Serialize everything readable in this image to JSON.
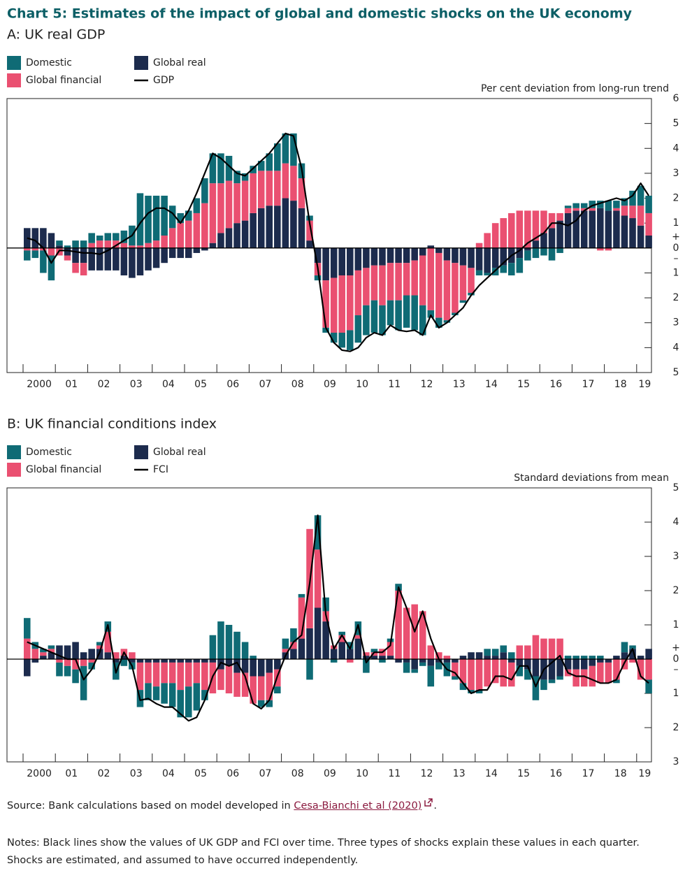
{
  "header": {
    "title": "Chart 5: Estimates of the impact of global and domestic shocks on the UK economy"
  },
  "chart_data": [
    {
      "type": "bar",
      "stacked": true,
      "subtitle": "A: UK real GDP",
      "y_label": "Per cent deviation from long-run trend",
      "years": [
        "2000",
        "01",
        "02",
        "03",
        "04",
        "05",
        "06",
        "07",
        "08",
        "09",
        "10",
        "11",
        "12",
        "13",
        "14",
        "15",
        "16",
        "17",
        "18",
        "19"
      ],
      "series": [
        {
          "name": "Domestic",
          "color": "#0f6b75",
          "values": [
            -0.4,
            -0.3,
            -0.9,
            -1.0,
            0.2,
            0.1,
            0.3,
            0.3,
            0.4,
            0.2,
            0.3,
            0.3,
            0.5,
            0.8,
            2.1,
            1.9,
            1.8,
            1.6,
            0.9,
            0.4,
            0.4,
            0.6,
            1.0,
            1.2,
            1.2,
            1.0,
            0.5,
            0.3,
            0.3,
            0.4,
            0.7,
            1.1,
            1.2,
            1.3,
            0.6,
            0.2,
            -0.2,
            -0.2,
            -0.4,
            -0.6,
            -0.8,
            -1.1,
            -1.2,
            -1.3,
            -1.2,
            -1.0,
            -1.2,
            -1.3,
            -1.4,
            -1.2,
            -0.3,
            -0.4,
            -0.1,
            -0.1,
            -0.1,
            -0.1,
            -0.2,
            -0.1,
            -0.3,
            -0.3,
            -0.5,
            -0.6,
            -0.4,
            -0.4,
            -0.3,
            -0.5,
            -0.2,
            0.1,
            0.2,
            0.2,
            0.3,
            0.3,
            0.4,
            0.3,
            0.3,
            0.6,
            0.8,
            0.7
          ]
        },
        {
          "name": "Global financial",
          "color": "#ea5071",
          "values": [
            -0.1,
            -0.1,
            -0.1,
            -0.3,
            -0.3,
            -0.2,
            -0.4,
            -0.5,
            0.2,
            0.3,
            0.3,
            0.3,
            0.2,
            0.1,
            0.1,
            0.2,
            0.3,
            0.5,
            0.8,
            1.0,
            1.1,
            1.4,
            1.8,
            2.4,
            2.0,
            1.9,
            1.6,
            1.6,
            1.6,
            1.5,
            1.4,
            1.4,
            1.4,
            1.4,
            1.2,
            0.8,
            -0.5,
            -1.9,
            -2.2,
            -2.3,
            -2.2,
            -1.8,
            -1.5,
            -1.4,
            -1.6,
            -1.5,
            -1.5,
            -1.3,
            -1.4,
            -2.0,
            -2.5,
            -2.6,
            -2.4,
            -2.0,
            -1.4,
            -1.0,
            0.2,
            0.6,
            1.0,
            1.2,
            1.4,
            1.5,
            1.5,
            1.2,
            0.9,
            0.6,
            0.3,
            0.2,
            0.1,
            0.1,
            0.1,
            -0.1,
            -0.1,
            0.1,
            0.4,
            0.5,
            0.8,
            0.9
          ]
        },
        {
          "name": "Global real",
          "color": "#1c2b4d",
          "values": [
            0.8,
            0.8,
            0.8,
            0.6,
            0.1,
            -0.3,
            -0.6,
            -0.6,
            -0.9,
            -0.9,
            -0.9,
            -0.9,
            -1.1,
            -1.2,
            -1.1,
            -0.9,
            -0.8,
            -0.6,
            -0.4,
            -0.4,
            -0.4,
            -0.2,
            -0.1,
            0.2,
            0.6,
            0.8,
            1.0,
            1.1,
            1.4,
            1.6,
            1.7,
            1.7,
            2.0,
            1.9,
            1.6,
            0.3,
            -0.6,
            -1.3,
            -1.2,
            -1.1,
            -1.1,
            -0.9,
            -0.8,
            -0.7,
            -0.7,
            -0.6,
            -0.6,
            -0.6,
            -0.5,
            -0.3,
            0.1,
            -0.2,
            -0.5,
            -0.6,
            -0.7,
            -0.8,
            -0.9,
            -1.0,
            -0.8,
            -0.7,
            -0.6,
            -0.4,
            -0.1,
            0.3,
            0.6,
            0.8,
            1.1,
            1.4,
            1.5,
            1.5,
            1.5,
            1.6,
            1.5,
            1.5,
            1.3,
            1.2,
            0.9,
            0.5
          ]
        }
      ],
      "line": {
        "name": "GDP",
        "color": "#000000",
        "values": [
          0.4,
          0.3,
          0.0,
          -0.6,
          -0.1,
          -0.1,
          -0.15,
          -0.2,
          -0.2,
          -0.25,
          -0.1,
          0.1,
          0.3,
          0.5,
          1.0,
          1.4,
          1.6,
          1.6,
          1.4,
          1.0,
          1.5,
          2.2,
          3.0,
          3.8,
          3.6,
          3.3,
          3.0,
          2.9,
          3.2,
          3.5,
          3.8,
          4.2,
          4.6,
          4.5,
          3.2,
          1.0,
          -0.8,
          -3.2,
          -3.8,
          -4.1,
          -4.15,
          -4.0,
          -3.6,
          -3.4,
          -3.5,
          -3.1,
          -3.3,
          -3.35,
          -3.3,
          -3.5,
          -2.7,
          -3.2,
          -3.0,
          -2.7,
          -2.4,
          -1.9,
          -1.5,
          -1.2,
          -0.9,
          -0.6,
          -0.3,
          -0.1,
          0.2,
          0.4,
          0.6,
          1.0,
          1.0,
          0.9,
          1.1,
          1.5,
          1.7,
          1.8,
          1.9,
          2.0,
          1.9,
          2.1,
          2.6,
          2.1
        ]
      },
      "ylim": [
        -5,
        6
      ],
      "yticks": [
        6,
        5,
        4,
        3,
        2,
        1,
        0,
        {
          "value": -1,
          "label": "1"
        },
        {
          "value": -2,
          "label": "2"
        },
        {
          "value": -3,
          "label": "3"
        },
        {
          "value": -4,
          "label": "4"
        },
        {
          "value": -5,
          "label": "5"
        }
      ],
      "zero_signs": [
        "+",
        "–"
      ]
    },
    {
      "type": "bar",
      "stacked": true,
      "subtitle": "B: UK financial conditions index",
      "y_label": "Standard deviations from mean",
      "years": [
        "2000",
        "01",
        "02",
        "03",
        "04",
        "05",
        "06",
        "07",
        "08",
        "09",
        "10",
        "11",
        "12",
        "13",
        "14",
        "15",
        "16",
        "17",
        "18",
        "19"
      ],
      "series": [
        {
          "name": "Domestic",
          "color": "#0f6b75",
          "values": [
            0.6,
            0.2,
            0.1,
            0.1,
            -0.4,
            -0.3,
            -0.4,
            -1.0,
            -0.2,
            0.1,
            0.3,
            -0.5,
            -0.2,
            -0.2,
            -0.5,
            -0.5,
            -0.4,
            -0.6,
            -0.7,
            -0.8,
            -0.9,
            -0.8,
            -0.3,
            0.7,
            1.1,
            1.0,
            0.8,
            0.5,
            0.1,
            -0.2,
            -0.2,
            -0.2,
            0.3,
            0.4,
            0.1,
            -0.6,
            1.0,
            0.4,
            -0.1,
            0.1,
            0.2,
            0.4,
            -0.4,
            0.1,
            -0.1,
            0.1,
            0.2,
            -0.3,
            -0.1,
            -0.1,
            -0.6,
            -0.2,
            -0.4,
            -0.1,
            -0.2,
            -0.1,
            -0.1,
            0.2,
            0.2,
            0.2,
            0.2,
            -0.3,
            -0.3,
            -0.7,
            -0.3,
            -0.1,
            -0.1,
            0.1,
            0.1,
            0.1,
            0.1,
            0.1,
            0.0,
            -0.1,
            0.3,
            0.1,
            0.0,
            -0.4
          ]
        },
        {
          "name": "Global financial",
          "color": "#ea5071",
          "values": [
            0.6,
            0.3,
            0.1,
            0.1,
            -0.1,
            -0.2,
            -0.3,
            -0.2,
            -0.1,
            0.1,
            0.6,
            0.2,
            0.2,
            0.2,
            -0.8,
            -0.6,
            -0.7,
            -0.6,
            -0.6,
            -0.8,
            -0.7,
            -0.6,
            -0.8,
            -0.9,
            -0.6,
            -0.8,
            -0.7,
            -0.7,
            -0.8,
            -0.7,
            -0.8,
            -0.5,
            0.1,
            0.2,
            1.2,
            2.9,
            1.7,
            0.3,
            0.1,
            0.2,
            -0.1,
            0.1,
            0.1,
            0.1,
            0.2,
            0.4,
            2.0,
            1.5,
            1.6,
            1.4,
            0.4,
            0.2,
            0.1,
            -0.4,
            -0.7,
            -0.9,
            -0.9,
            -0.8,
            -0.7,
            -0.8,
            -0.7,
            0.4,
            0.4,
            0.7,
            0.6,
            0.6,
            0.6,
            -0.2,
            -0.5,
            -0.5,
            -0.6,
            -0.6,
            -0.6,
            -0.6,
            -0.3,
            -0.1,
            -0.6,
            -0.6
          ]
        },
        {
          "name": "Global real",
          "color": "#1c2b4d",
          "values": [
            -0.5,
            -0.1,
            0.1,
            0.2,
            0.4,
            0.4,
            0.5,
            0.2,
            0.3,
            0.3,
            0.2,
            -0.1,
            0.1,
            -0.1,
            -0.1,
            -0.1,
            -0.1,
            -0.1,
            -0.1,
            -0.1,
            -0.1,
            -0.1,
            -0.1,
            -0.1,
            -0.3,
            -0.2,
            -0.4,
            -0.4,
            -0.5,
            -0.5,
            -0.4,
            -0.3,
            0.2,
            0.3,
            0.6,
            0.9,
            1.5,
            1.1,
            0.3,
            0.5,
            0.3,
            0.6,
            0.1,
            0.1,
            0.1,
            0.1,
            -0.1,
            -0.1,
            -0.3,
            -0.1,
            -0.2,
            -0.1,
            -0.1,
            -0.1,
            0.1,
            0.2,
            0.2,
            0.1,
            0.1,
            0.2,
            -0.1,
            -0.2,
            -0.3,
            -0.5,
            -0.6,
            -0.6,
            -0.5,
            -0.3,
            -0.3,
            -0.3,
            -0.2,
            -0.1,
            -0.1,
            0.1,
            0.2,
            0.3,
            0.1,
            0.3
          ]
        }
      ],
      "line": {
        "name": "FCI",
        "color": "#000000",
        "values": [
          0.5,
          0.4,
          0.3,
          0.2,
          0.1,
          0.0,
          0.0,
          -0.6,
          -0.3,
          0.2,
          1.0,
          -0.4,
          0.2,
          -0.2,
          -1.2,
          -1.15,
          -1.3,
          -1.4,
          -1.4,
          -1.6,
          -1.8,
          -1.7,
          -1.2,
          -0.5,
          -0.1,
          -0.2,
          -0.1,
          -0.5,
          -1.3,
          -1.45,
          -1.2,
          -0.5,
          0.1,
          0.5,
          0.7,
          2.2,
          4.2,
          1.3,
          0.3,
          0.7,
          0.3,
          1.0,
          -0.1,
          0.2,
          0.2,
          0.4,
          2.1,
          1.5,
          0.8,
          1.4,
          0.6,
          0.0,
          -0.3,
          -0.4,
          -0.7,
          -1.0,
          -0.9,
          -0.9,
          -0.5,
          -0.5,
          -0.6,
          -0.2,
          -0.2,
          -0.8,
          -0.3,
          -0.1,
          0.1,
          -0.4,
          -0.5,
          -0.5,
          -0.6,
          -0.7,
          -0.7,
          -0.6,
          -0.1,
          0.3,
          -0.5,
          -0.7
        ]
      },
      "ylim": [
        -3,
        5
      ],
      "yticks": [
        5,
        4,
        3,
        2,
        1,
        0,
        {
          "value": -1,
          "label": "1"
        },
        {
          "value": -2,
          "label": "2"
        },
        {
          "value": -3,
          "label": "3"
        }
      ],
      "zero_signs": [
        "+",
        "–"
      ]
    }
  ],
  "footer": {
    "source_prefix": "Source: Bank calculations based on model developed in ",
    "source_link": "Cesa-Bianchi et al (2020)",
    "source_suffix": ".",
    "notes": "Notes: Black lines show the values of UK GDP and FCI over time. Three types of shocks explain these values in each quarter. Shocks are estimated, and assumed to have occurred independently."
  }
}
